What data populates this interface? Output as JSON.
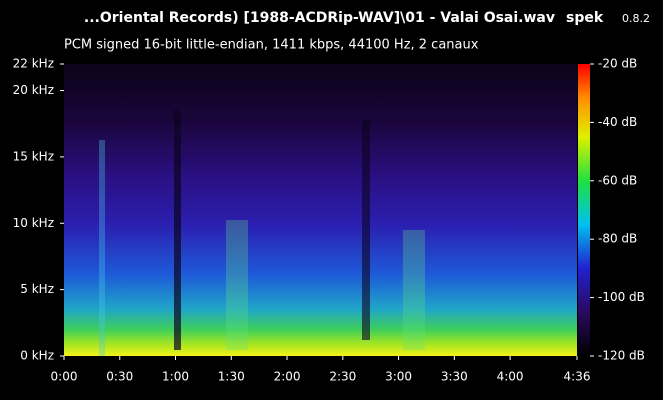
{
  "chart_data": {
    "type": "spectrogram",
    "title": "...Oriental Records) [1988-ACDRip-WAV]\\01 - Valai Osai.wav",
    "app": "spek",
    "version": "0.8.2",
    "subtitle": "PCM signed 16-bit little-endian, 1411 kbps, 44100 Hz, 2 canaux",
    "xlim": [
      0,
      276
    ],
    "xticks": [
      {
        "value": 0,
        "label": "0:00"
      },
      {
        "value": 30,
        "label": "0:30"
      },
      {
        "value": 60,
        "label": "1:00"
      },
      {
        "value": 90,
        "label": "1:30"
      },
      {
        "value": 120,
        "label": "2:00"
      },
      {
        "value": 150,
        "label": "2:30"
      },
      {
        "value": 180,
        "label": "3:00"
      },
      {
        "value": 210,
        "label": "3:30"
      },
      {
        "value": 240,
        "label": "4:00"
      },
      {
        "value": 276,
        "label": "4:36"
      }
    ],
    "ylim": [
      0,
      22
    ],
    "yticks": [
      {
        "value": 0,
        "label": "0 kHz"
      },
      {
        "value": 5,
        "label": "5 kHz"
      },
      {
        "value": 10,
        "label": "10 kHz"
      },
      {
        "value": 15,
        "label": "15 kHz"
      },
      {
        "value": 20,
        "label": "20 kHz"
      },
      {
        "value": 22,
        "label": "22 kHz"
      }
    ],
    "zlim": [
      -120,
      -20
    ],
    "zticks": [
      {
        "value": -20,
        "label": "-20 dB"
      },
      {
        "value": -40,
        "label": "-40 dB"
      },
      {
        "value": -60,
        "label": "-60 dB"
      },
      {
        "value": -80,
        "label": "-80 dB"
      },
      {
        "value": -100,
        "label": "-100 dB"
      },
      {
        "value": -120,
        "label": "-120 dB"
      }
    ]
  }
}
